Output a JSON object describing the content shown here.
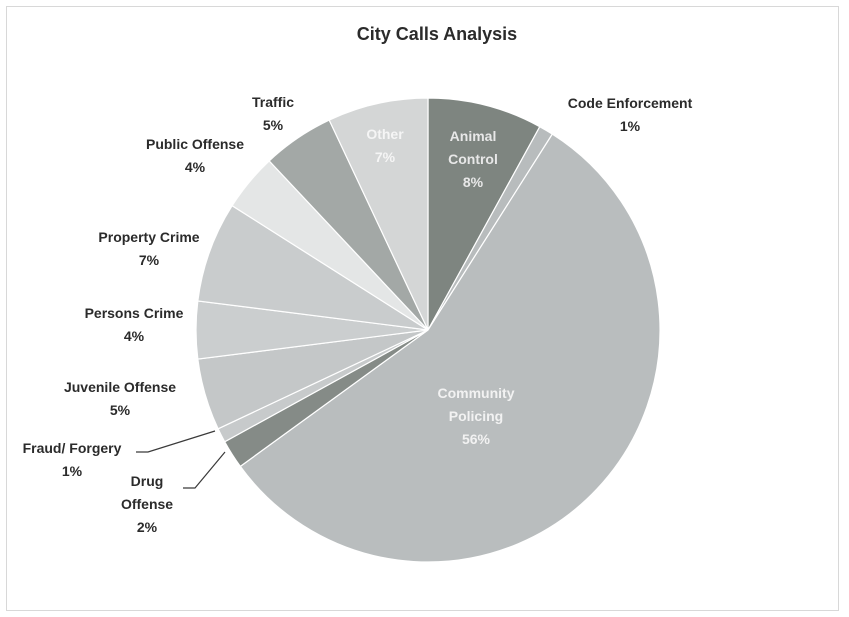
{
  "chart_data": {
    "type": "pie",
    "title": "City Calls Analysis",
    "slices": [
      {
        "name": "Animal Control",
        "label_lines": [
          "Animal",
          "Control"
        ],
        "pct_label": "8%",
        "value": 8,
        "color": "#7e8580"
      },
      {
        "name": "Code Enforcement",
        "label_lines": [
          "Code Enforcement"
        ],
        "pct_label": "1%",
        "value": 1,
        "color": "#b8bcbd"
      },
      {
        "name": "Community Policing",
        "label_lines": [
          "Community",
          "Policing"
        ],
        "pct_label": "56%",
        "value": 56,
        "color": "#b9bdbe"
      },
      {
        "name": "Drug Offense",
        "label_lines": [
          "Drug",
          "Offense"
        ],
        "pct_label": "2%",
        "value": 2,
        "color": "#858b87"
      },
      {
        "name": "Fraud/ Forgery",
        "label_lines": [
          "Fraud/ Forgery"
        ],
        "pct_label": "1%",
        "value": 1,
        "color": "#c7cacb"
      },
      {
        "name": "Juvenile Offense",
        "label_lines": [
          "Juvenile Offense"
        ],
        "pct_label": "5%",
        "value": 5,
        "color": "#c4c7c8"
      },
      {
        "name": "Persons Crime",
        "label_lines": [
          "Persons Crime"
        ],
        "pct_label": "4%",
        "value": 4,
        "color": "#cbcecf"
      },
      {
        "name": "Property Crime",
        "label_lines": [
          "Property Crime"
        ],
        "pct_label": "7%",
        "value": 7,
        "color": "#c9cccd"
      },
      {
        "name": "Public Offense",
        "label_lines": [
          "Public Offense"
        ],
        "pct_label": "4%",
        "value": 4,
        "color": "#e4e6e6"
      },
      {
        "name": "Traffic",
        "label_lines": [
          "Traffic"
        ],
        "pct_label": "5%",
        "value": 5,
        "color": "#a3a8a6"
      },
      {
        "name": "Other",
        "label_lines": [
          "Other"
        ],
        "pct_label": "7%",
        "value": 7,
        "color": "#d4d6d6"
      }
    ]
  }
}
